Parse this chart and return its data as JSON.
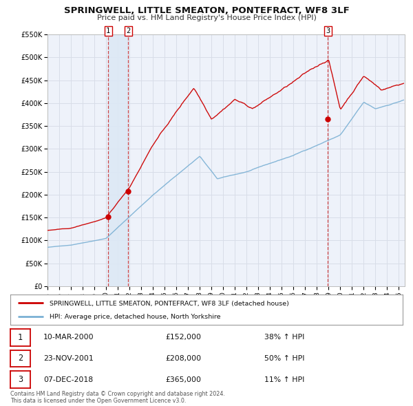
{
  "title": "SPRINGWELL, LITTLE SMEATON, PONTEFRACT, WF8 3LF",
  "subtitle": "Price paid vs. HM Land Registry's House Price Index (HPI)",
  "ylim": [
    0,
    550000
  ],
  "xlim_start": 1995.0,
  "xlim_end": 2025.5,
  "background_color": "#ffffff",
  "plot_bg_color": "#eef2fa",
  "grid_color": "#d8dde8",
  "red_line_color": "#cc0000",
  "blue_line_color": "#7ab0d4",
  "sale_marker_color": "#cc0000",
  "vline_color": "#cc3333",
  "vline_shade_color": "#dce8f5",
  "legend_label_red": "SPRINGWELL, LITTLE SMEATON, PONTEFRACT, WF8 3LF (detached house)",
  "legend_label_blue": "HPI: Average price, detached house, North Yorkshire",
  "sales": [
    {
      "num": 1,
      "date_x": 2000.19,
      "price": 152000,
      "label": "10-MAR-2000",
      "amount": "£152,000",
      "pct": "38% ↑ HPI"
    },
    {
      "num": 2,
      "date_x": 2001.9,
      "price": 208000,
      "label": "23-NOV-2001",
      "amount": "£208,000",
      "pct": "50% ↑ HPI"
    },
    {
      "num": 3,
      "date_x": 2018.93,
      "price": 365000,
      "label": "07-DEC-2018",
      "amount": "£365,000",
      "pct": "11% ↑ HPI"
    }
  ],
  "footer": "Contains HM Land Registry data © Crown copyright and database right 2024.\nThis data is licensed under the Open Government Licence v3.0.",
  "yticks": [
    0,
    50000,
    100000,
    150000,
    200000,
    250000,
    300000,
    350000,
    400000,
    450000,
    500000,
    550000
  ],
  "ytick_labels": [
    "£0",
    "£50K",
    "£100K",
    "£150K",
    "£200K",
    "£250K",
    "£300K",
    "£350K",
    "£400K",
    "£450K",
    "£500K",
    "£550K"
  ]
}
